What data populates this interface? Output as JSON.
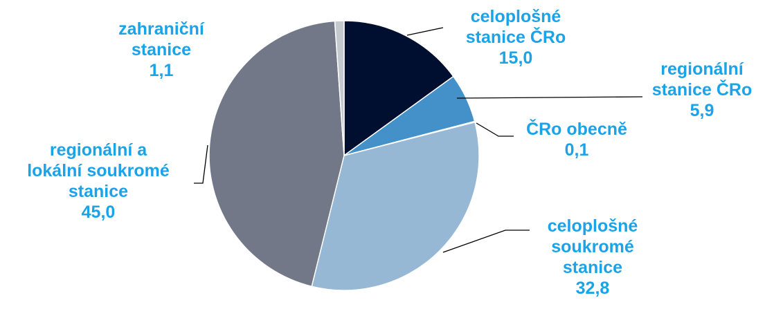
{
  "chart_data": {
    "type": "pie",
    "title": "",
    "legend": "none",
    "start_angle_deg": 0,
    "direction": "clockwise",
    "label_color": "#1aa3e8",
    "leader_color": "#000000",
    "slices": [
      {
        "id": "celoplosne-cro",
        "label_lines": [
          "celoplošné",
          "stanice ČRo"
        ],
        "value": 15.0,
        "value_label": "15,0",
        "color": "#000e2f"
      },
      {
        "id": "regionalni-cro",
        "label_lines": [
          "regionální",
          "stanice ČRo"
        ],
        "value": 5.9,
        "value_label": "5,9",
        "color": "#4490c8"
      },
      {
        "id": "cro-obecne",
        "label_lines": [
          "ČRo obecně"
        ],
        "value": 0.1,
        "value_label": "0,1",
        "color": "#3d86c4"
      },
      {
        "id": "celoplosne-soukrome",
        "label_lines": [
          "celoplošné",
          "soukromé",
          "stanice"
        ],
        "value": 32.8,
        "value_label": "32,8",
        "color": "#96b8d4"
      },
      {
        "id": "regionalni-lokalni-soukrome",
        "label_lines": [
          "regionální a",
          "lokální soukromé",
          "stanice"
        ],
        "value": 45.0,
        "value_label": "45,0",
        "color": "#737889"
      },
      {
        "id": "zahranicni",
        "label_lines": [
          "zahraniční",
          "stanice"
        ],
        "value": 1.1,
        "value_label": "1,1",
        "color": "#c4c8cf"
      }
    ]
  }
}
